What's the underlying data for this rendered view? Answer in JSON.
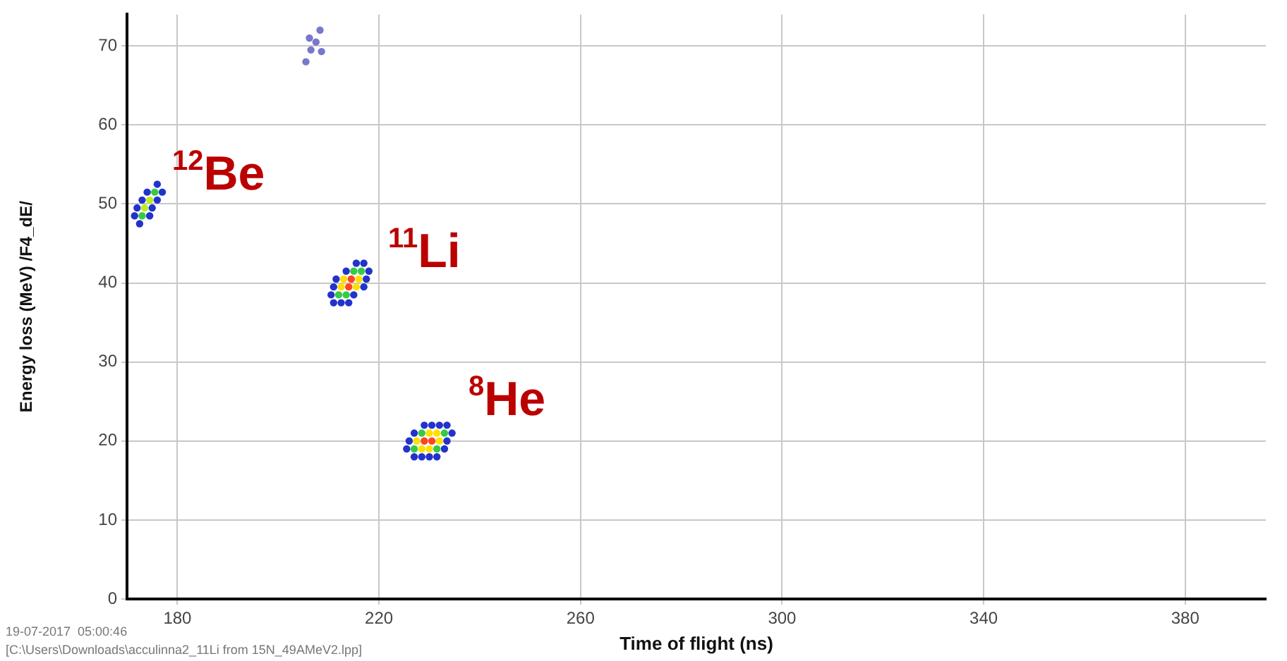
{
  "chart_data": {
    "type": "scatter",
    "xlabel": "Time of flight (ns)",
    "ylabel": "Energy loss (MeV) /F4_dE/",
    "xlim": [
      170,
      396
    ],
    "xticks": [
      180,
      220,
      260,
      300,
      340,
      380
    ],
    "ylim": [
      0,
      74
    ],
    "yticks": [
      0,
      10,
      20,
      30,
      40,
      50,
      60,
      70
    ],
    "grid": true,
    "legend": false,
    "marker": "circle",
    "series": [
      {
        "color": "#7777cc",
        "x": [
          205.5,
          206.5,
          207.5,
          208.3,
          208.6,
          206.2
        ],
        "values": [
          68,
          69.5,
          70.5,
          72,
          69.3,
          71
        ]
      },
      {
        "x": [
          172.5,
          171.5,
          173,
          174.5,
          172,
          173.5,
          175,
          173,
          174.5,
          176,
          174,
          175.5,
          177,
          176
        ],
        "values": [
          47.5,
          48.5,
          48.5,
          48.5,
          49.5,
          49.5,
          49.5,
          50.5,
          50.5,
          50.5,
          51.5,
          51.5,
          51.5,
          52.5
        ],
        "colors": [
          "#2233cc",
          "#2233cc",
          "#33cc44",
          "#2233cc",
          "#2233cc",
          "#bbee22",
          "#2233cc",
          "#2233cc",
          "#bbee22",
          "#2233cc",
          "#2233cc",
          "#33cc44",
          "#2233cc",
          "#2233cc"
        ]
      },
      {
        "x": [
          211,
          212.5,
          214,
          210.5,
          212,
          213.5,
          215,
          211,
          212.5,
          214,
          215.5,
          217,
          211.5,
          213,
          214.5,
          216,
          217.5,
          213.5,
          215,
          216.5,
          218,
          215.5,
          217
        ],
        "values": [
          37.5,
          37.5,
          37.5,
          38.5,
          38.5,
          38.5,
          38.5,
          39.5,
          39.5,
          39.5,
          39.5,
          39.5,
          40.5,
          40.5,
          40.5,
          40.5,
          40.5,
          41.5,
          41.5,
          41.5,
          41.5,
          42.5,
          42.5
        ],
        "colors": [
          "#2233cc",
          "#2233cc",
          "#2233cc",
          "#2233cc",
          "#33cc44",
          "#33cc44",
          "#2233cc",
          "#2233cc",
          "#ffe000",
          "#ff4422",
          "#ffe000",
          "#2233cc",
          "#2233cc",
          "#ffe000",
          "#ff4422",
          "#ffe000",
          "#2233cc",
          "#2233cc",
          "#33cc44",
          "#33cc44",
          "#2233cc",
          "#2233cc",
          "#2233cc"
        ]
      },
      {
        "x": [
          227,
          228.5,
          230,
          231.5,
          225.5,
          227,
          228.5,
          230,
          231.5,
          233,
          226,
          227.5,
          229,
          230.5,
          232,
          233.5,
          227,
          228.5,
          230,
          231.5,
          233,
          234.5,
          229,
          230.5,
          232,
          233.5
        ],
        "values": [
          18,
          18,
          18,
          18,
          19,
          19,
          19,
          19,
          19,
          19,
          20,
          20,
          20,
          20,
          20,
          20,
          21,
          21,
          21,
          21,
          21,
          21,
          22,
          22,
          22,
          22
        ],
        "colors": [
          "#2233cc",
          "#2233cc",
          "#2233cc",
          "#2233cc",
          "#2233cc",
          "#33cc44",
          "#ffe000",
          "#ffe000",
          "#33cc44",
          "#2233cc",
          "#2233cc",
          "#ffe000",
          "#ff4422",
          "#ff4422",
          "#ffe000",
          "#2233cc",
          "#2233cc",
          "#33cc44",
          "#ffe000",
          "#ffe000",
          "#33cc44",
          "#2233cc",
          "#2233cc",
          "#2233cc",
          "#2233cc",
          "#2233cc"
        ]
      }
    ],
    "annotations": [
      "$^{12}$Be",
      "$^{11}$Li",
      "$^{8}$He",
      "19-07-2017  05:00:46",
      "[C:\\Users\\Downloads\\acculinna2_11Li from 15N_49AMeV2.lpp]"
    ]
  }
}
